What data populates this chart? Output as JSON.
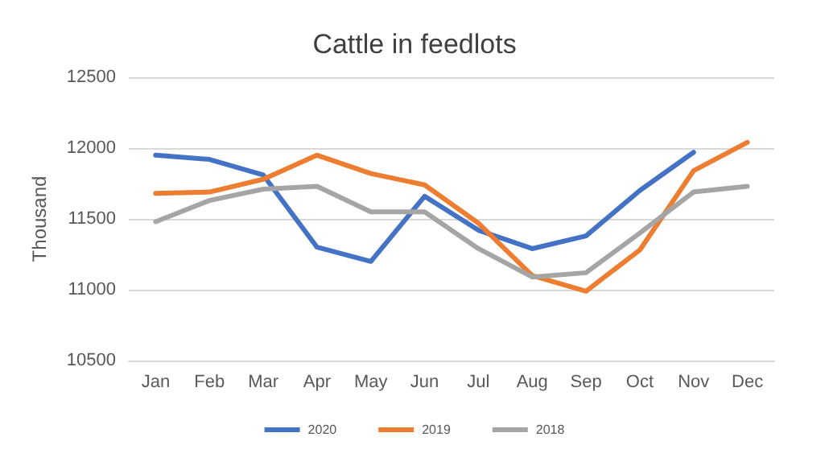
{
  "chart_data": {
    "type": "line",
    "title": "Cattle in feedlots",
    "ylabel": "Thousand",
    "categories": [
      "Jan",
      "Feb",
      "Mar",
      "Apr",
      "May",
      "Jun",
      "Jul",
      "Aug",
      "Sep",
      "Oct",
      "Nov",
      "Dec"
    ],
    "series": [
      {
        "name": "2020",
        "color": "#4472c4",
        "values": [
          11950,
          11920,
          11810,
          11300,
          11200,
          11660,
          11420,
          11290,
          11380,
          11700,
          11970,
          null
        ]
      },
      {
        "name": "2019",
        "color": "#ed7d31",
        "values": [
          11680,
          11690,
          11780,
          11950,
          11820,
          11740,
          11470,
          11100,
          10990,
          11280,
          11840,
          12040
        ]
      },
      {
        "name": "2018",
        "color": "#a5a5a5",
        "values": [
          11480,
          11630,
          11710,
          11730,
          11550,
          11550,
          11290,
          11090,
          11120,
          11400,
          11690,
          11730
        ]
      }
    ],
    "ylim": [
      10500,
      12500
    ],
    "yticks": [
      10500,
      11000,
      11500,
      12000,
      12500
    ],
    "grid": "y",
    "legend": "bottom",
    "marker": "none",
    "line_style": "solid"
  }
}
